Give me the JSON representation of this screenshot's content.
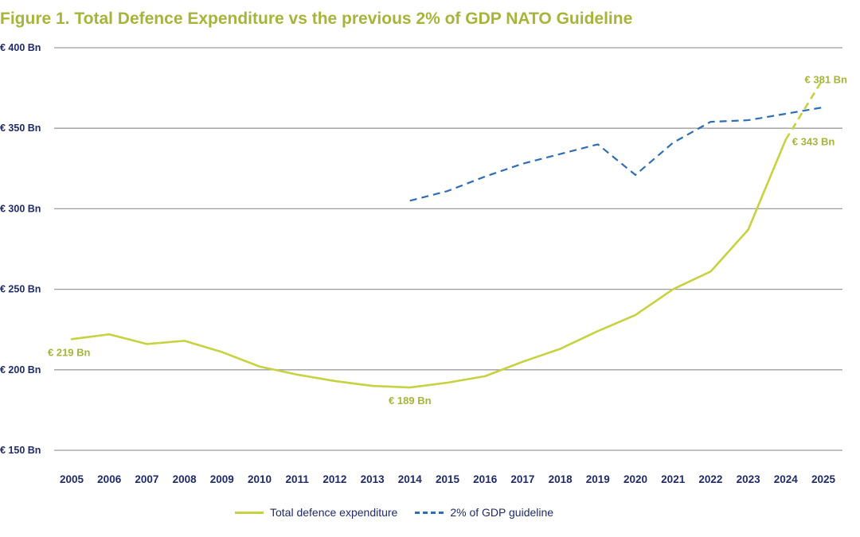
{
  "colors": {
    "title": "#a6b53a",
    "expenditure": "#c8d13f",
    "guideline": "#2f6eb5",
    "axis_text": "#1f2a6b",
    "grid": "#9e9e9e",
    "value_label": "#a6b53a"
  },
  "chart_data": {
    "type": "line",
    "title": "Figure 1. Total Defence Expenditure vs the previous 2% of GDP NATO Guideline",
    "xlabel": "",
    "ylabel": "",
    "ylim": [
      150,
      400
    ],
    "y_ticks": [
      150,
      200,
      250,
      300,
      350,
      400
    ],
    "y_tick_labels": [
      "€ 150 Bn",
      "€ 200 Bn",
      "€ 250 Bn",
      "€ 300 Bn",
      "€ 350 Bn",
      "€ 400 Bn"
    ],
    "categories": [
      "2005",
      "2006",
      "2007",
      "2008",
      "2009",
      "2010",
      "2011",
      "2012",
      "2013",
      "2014",
      "2015",
      "2016",
      "2017",
      "2018",
      "2019",
      "2020",
      "2021",
      "2022",
      "2023",
      "2024",
      "2025"
    ],
    "grid": true,
    "legend_position": "bottom",
    "series": [
      {
        "name": "Total defence expenditure",
        "style": "solid",
        "values": [
          219,
          222,
          216,
          218,
          211,
          202,
          197,
          193,
          190,
          189,
          192,
          196,
          205,
          213,
          224,
          234,
          250,
          261,
          287,
          343,
          381
        ],
        "projected_from_index": 19
      },
      {
        "name": "2% of GDP guideline",
        "style": "dashed",
        "values": [
          null,
          null,
          null,
          null,
          null,
          null,
          null,
          null,
          null,
          305,
          311,
          320,
          328,
          334,
          340,
          321,
          341,
          354,
          355,
          359,
          363
        ]
      }
    ],
    "annotations": [
      {
        "series": 0,
        "index": 0,
        "text": "€ 219 Bn"
      },
      {
        "series": 0,
        "index": 9,
        "text": "€ 189 Bn"
      },
      {
        "series": 0,
        "index": 19,
        "text": "€ 343 Bn"
      },
      {
        "series": 0,
        "index": 20,
        "text": "€ 381 Bn"
      }
    ]
  },
  "legend": {
    "expenditure_label": "Total defence expenditure",
    "guideline_label": "2% of GDP guideline"
  }
}
